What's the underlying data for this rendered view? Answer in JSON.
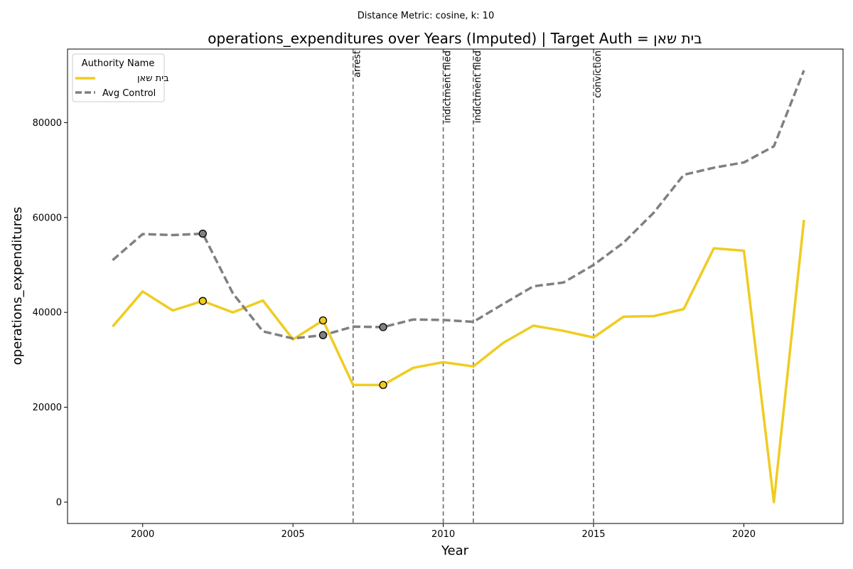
{
  "chart_data": {
    "type": "line",
    "suptitle": "Distance Metric: cosine, k: 10",
    "title": "operations_expenditures over Years (Imputed) | Target Auth = בית שאן",
    "xlabel": "Year",
    "ylabel": "operations_expenditures",
    "xlim": [
      1997.5,
      2023.3
    ],
    "ylim": [
      -4500,
      95500
    ],
    "xticks": [
      2000,
      2005,
      2010,
      2015,
      2020
    ],
    "yticks": [
      0,
      20000,
      40000,
      60000,
      80000
    ],
    "grid": false,
    "legend": {
      "title": "Authority Name",
      "placement": "upper-left"
    },
    "series": [
      {
        "name": "בית שאן",
        "color": "#F0CC20",
        "style": "solid",
        "x": [
          1999,
          2000,
          2001,
          2002,
          2003,
          2004,
          2005,
          2006,
          2007,
          2008,
          2009,
          2010,
          2011,
          2012,
          2013,
          2014,
          2015,
          2016,
          2017,
          2018,
          2019,
          2020,
          2021,
          2022
        ],
        "y": [
          37000,
          44400,
          40400,
          42400,
          40000,
          42500,
          34300,
          38300,
          24700,
          24700,
          28300,
          29500,
          28600,
          33600,
          37200,
          36100,
          34700,
          39100,
          39200,
          40700,
          53500,
          53000,
          0,
          59500
        ],
        "imputed_x": [
          2002,
          2006,
          2008
        ]
      },
      {
        "name": "Avg Control",
        "color": "#808080",
        "style": "dashed",
        "x": [
          1999,
          2000,
          2001,
          2002,
          2003,
          2004,
          2005,
          2006,
          2007,
          2008,
          2009,
          2010,
          2011,
          2012,
          2013,
          2014,
          2015,
          2016,
          2017,
          2018,
          2019,
          2020,
          2021,
          2022
        ],
        "y": [
          51000,
          56500,
          56300,
          56600,
          44000,
          36000,
          34500,
          35200,
          37000,
          36900,
          38500,
          38400,
          38000,
          41800,
          45500,
          46300,
          50000,
          54700,
          61000,
          69000,
          70500,
          71600,
          75000,
          91000
        ],
        "imputed_x": [
          2002,
          2006,
          2008
        ]
      }
    ],
    "events": [
      {
        "x": 2007,
        "label": "arrest"
      },
      {
        "x": 2010,
        "label": "indictment filed"
      },
      {
        "x": 2011,
        "label": "indictment filed"
      },
      {
        "x": 2015,
        "label": "conviction"
      }
    ]
  }
}
